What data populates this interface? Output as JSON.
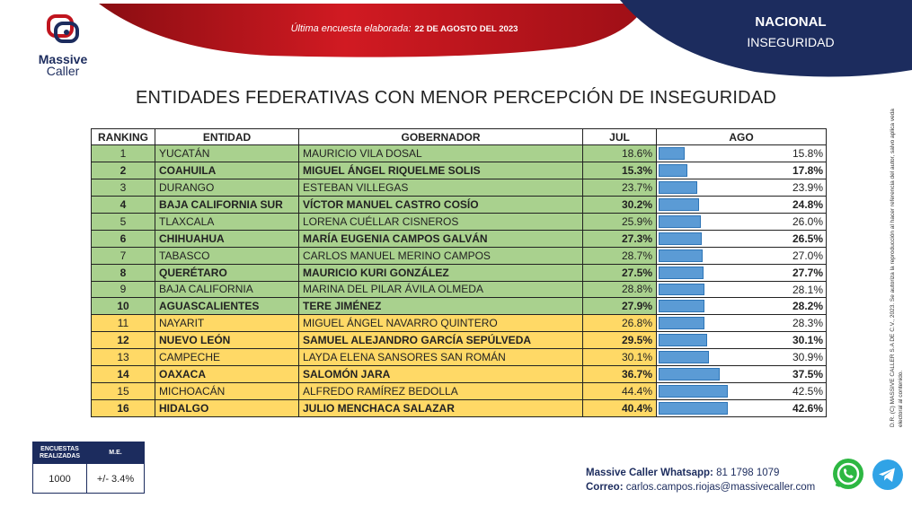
{
  "header": {
    "brand_line1": "Massive",
    "brand_line2": "Caller",
    "survey_label": "Última encuesta elaborada:",
    "survey_date": "22 DE AGOSTO DEL 2023",
    "scope": "NACIONAL",
    "topic": "INSEGURIDAD"
  },
  "title": "ENTIDADES FEDERATIVAS CON MENOR PERCEPCIÓN DE INSEGURIDAD",
  "table": {
    "headers": [
      "RANKING",
      "ENTIDAD",
      "GOBERNADOR",
      "JUL",
      "AGO"
    ],
    "rows": [
      {
        "rank": "1",
        "entidad": "YUCATÁN",
        "gobernador": "MAURICIO VILA DOSAL",
        "jul": "18.6%",
        "ago": "15.8%",
        "ago_value": 15.8,
        "group": "green",
        "bold": false
      },
      {
        "rank": "2",
        "entidad": "COAHUILA",
        "gobernador": "MIGUEL ÁNGEL RIQUELME SOLIS",
        "jul": "15.3%",
        "ago": "17.8%",
        "ago_value": 17.8,
        "group": "green",
        "bold": true
      },
      {
        "rank": "3",
        "entidad": "DURANGO",
        "gobernador": "ESTEBAN VILLEGAS",
        "jul": "23.7%",
        "ago": "23.9%",
        "ago_value": 23.9,
        "group": "green",
        "bold": false
      },
      {
        "rank": "4",
        "entidad": "BAJA CALIFORNIA SUR",
        "gobernador": "VÍCTOR MANUEL CASTRO COSÍO",
        "jul": "30.2%",
        "ago": "24.8%",
        "ago_value": 24.8,
        "group": "green",
        "bold": true
      },
      {
        "rank": "5",
        "entidad": "TLAXCALA",
        "gobernador": "LORENA CUÉLLAR CISNEROS",
        "jul": "25.9%",
        "ago": "26.0%",
        "ago_value": 26.0,
        "group": "green",
        "bold": false
      },
      {
        "rank": "6",
        "entidad": "CHIHUAHUA",
        "gobernador": "MARÍA EUGENIA CAMPOS GALVÁN",
        "jul": "27.3%",
        "ago": "26.5%",
        "ago_value": 26.5,
        "group": "green",
        "bold": true
      },
      {
        "rank": "7",
        "entidad": "TABASCO",
        "gobernador": "CARLOS MANUEL MERINO CAMPOS",
        "jul": "28.7%",
        "ago": "27.0%",
        "ago_value": 27.0,
        "group": "green",
        "bold": false
      },
      {
        "rank": "8",
        "entidad": "QUERÉTARO",
        "gobernador": "MAURICIO KURI GONZÁLEZ",
        "jul": "27.5%",
        "ago": "27.7%",
        "ago_value": 27.7,
        "group": "green",
        "bold": true
      },
      {
        "rank": "9",
        "entidad": "BAJA CALIFORNIA",
        "gobernador": "MARINA DEL PILAR ÁVILA OLMEDA",
        "jul": "28.8%",
        "ago": "28.1%",
        "ago_value": 28.1,
        "group": "green",
        "bold": false
      },
      {
        "rank": "10",
        "entidad": "AGUASCALIENTES",
        "gobernador": "TERE JIMÉNEZ",
        "jul": "27.9%",
        "ago": "28.2%",
        "ago_value": 28.2,
        "group": "green",
        "bold": true
      },
      {
        "rank": "11",
        "entidad": "NAYARIT",
        "gobernador": "MIGUEL ÁNGEL NAVARRO QUINTERO",
        "jul": "26.8%",
        "ago": "28.3%",
        "ago_value": 28.3,
        "group": "yellow",
        "bold": false
      },
      {
        "rank": "12",
        "entidad": "NUEVO LEÓN",
        "gobernador": "SAMUEL ALEJANDRO GARCÍA SEPÚLVEDA",
        "jul": "29.5%",
        "ago": "30.1%",
        "ago_value": 30.1,
        "group": "yellow",
        "bold": true
      },
      {
        "rank": "13",
        "entidad": "CAMPECHE",
        "gobernador": "LAYDA ELENA SANSORES SAN ROMÁN",
        "jul": "30.1%",
        "ago": "30.9%",
        "ago_value": 30.9,
        "group": "yellow",
        "bold": false
      },
      {
        "rank": "14",
        "entidad": "OAXACA",
        "gobernador": "SALOMÓN JARA",
        "jul": "36.7%",
        "ago": "37.5%",
        "ago_value": 37.5,
        "group": "yellow",
        "bold": true
      },
      {
        "rank": "15",
        "entidad": "MICHOACÁN",
        "gobernador": "ALFREDO RAMÍREZ BEDOLLA",
        "jul": "44.4%",
        "ago": "42.5%",
        "ago_value": 42.5,
        "group": "yellow",
        "bold": false
      },
      {
        "rank": "16",
        "entidad": "HIDALGO",
        "gobernador": "JULIO MENCHACA SALAZAR",
        "jul": "40.4%",
        "ago": "42.6%",
        "ago_value": 42.6,
        "group": "yellow",
        "bold": true
      }
    ]
  },
  "stats": {
    "col1_label": "ENCUESTAS REALIZADAS",
    "col2_label": "M.E.",
    "col1_value": "1000",
    "col2_value": "+/- 3.4%"
  },
  "contact": {
    "whatsapp_label": "Massive Caller Whatsapp:",
    "whatsapp_number": "81 1798 1079",
    "email_label": "Correo:",
    "email": "carlos.campos.riojas@massivecaller.com"
  },
  "copyright": "D.R. (C) MASSIVE CALLER S.A DE C.V., 2023. Se autoriza la reproducción al hacer referencia del autor, salvo aplica veda electoral al contenido.",
  "colors": {
    "green": "#a9d18e",
    "yellow": "#ffd966",
    "bar": "#5b9bd5",
    "navy": "#1c2c5e",
    "red": "#c0141e"
  }
}
